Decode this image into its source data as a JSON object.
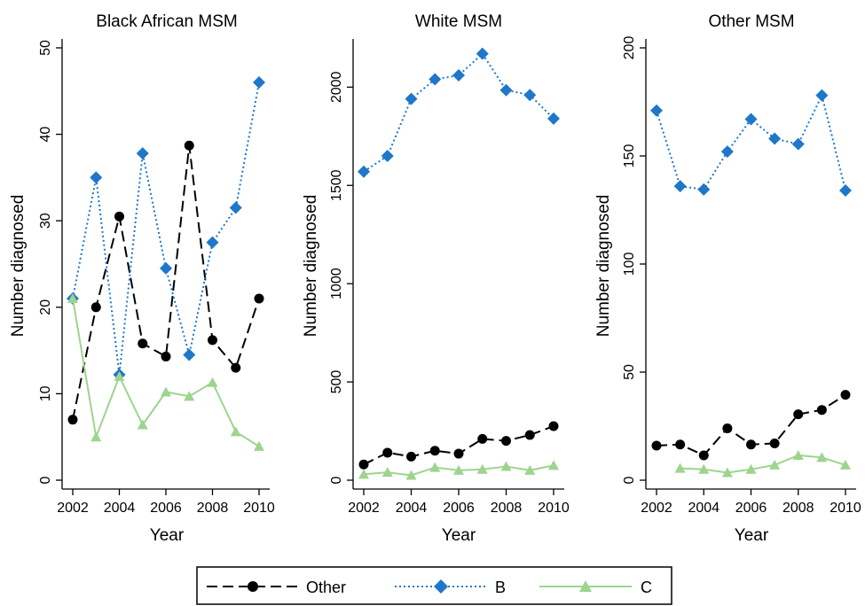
{
  "chart_data": [
    {
      "type": "line",
      "title": "Black African MSM",
      "xlabel": "Year",
      "ylabel": "Number diagnosed",
      "xlim": [
        2002,
        2010
      ],
      "ylim": [
        0,
        50
      ],
      "xticks": [
        2002,
        2004,
        2006,
        2008,
        2010
      ],
      "yticks": [
        0,
        10,
        20,
        30,
        40,
        50
      ],
      "x": [
        2002,
        2003,
        2004,
        2005,
        2006,
        2007,
        2008,
        2009,
        2010
      ],
      "series": [
        {
          "name": "Other",
          "values": [
            7,
            20,
            30.5,
            15.8,
            14.3,
            38.7,
            16.2,
            13,
            21
          ]
        },
        {
          "name": "B",
          "values": [
            21,
            35,
            12.2,
            37.8,
            24.5,
            14.5,
            27.5,
            31.5,
            46
          ]
        },
        {
          "name": "C",
          "values": [
            21,
            5,
            12,
            6.4,
            10.2,
            9.7,
            11.3,
            5.6,
            3.9
          ]
        }
      ]
    },
    {
      "type": "line",
      "title": "White MSM",
      "xlabel": "Year",
      "ylabel": "Number diagnosed",
      "xlim": [
        2002,
        2010
      ],
      "ylim": [
        0,
        2200
      ],
      "xticks": [
        2002,
        2004,
        2006,
        2008,
        2010
      ],
      "yticks": [
        0,
        500,
        1000,
        1500,
        2000
      ],
      "x": [
        2002,
        2003,
        2004,
        2005,
        2006,
        2007,
        2008,
        2009,
        2010
      ],
      "series": [
        {
          "name": "Other",
          "values": [
            80,
            140,
            120,
            150,
            135,
            210,
            200,
            230,
            275
          ]
        },
        {
          "name": "B",
          "values": [
            1570,
            1650,
            1940,
            2040,
            2060,
            2170,
            1985,
            1960,
            1840
          ]
        },
        {
          "name": "C",
          "values": [
            30,
            40,
            25,
            65,
            50,
            55,
            70,
            50,
            75
          ]
        }
      ]
    },
    {
      "type": "line",
      "title": "Other MSM",
      "xlabel": "Year",
      "ylabel": "Number diagnosed",
      "xlim": [
        2002,
        2010
      ],
      "ylim": [
        0,
        200
      ],
      "xticks": [
        2002,
        2004,
        2006,
        2008,
        2010
      ],
      "yticks": [
        0,
        50,
        100,
        150,
        200
      ],
      "x": [
        2002,
        2003,
        2004,
        2005,
        2006,
        2007,
        2008,
        2009,
        2010
      ],
      "series": [
        {
          "name": "Other",
          "values": [
            16,
            16.5,
            11.5,
            24,
            16.5,
            17,
            30.5,
            32.5,
            39.5
          ]
        },
        {
          "name": "B",
          "values": [
            171,
            136,
            134.5,
            152,
            167,
            158,
            155.5,
            178,
            134
          ]
        },
        {
          "name": "C",
          "values": [
            null,
            5.5,
            5,
            3.5,
            5,
            7,
            11.5,
            10.5,
            7
          ]
        }
      ]
    }
  ],
  "legend": {
    "position": "bottom",
    "items": [
      {
        "label": "Other",
        "color": "#000000",
        "marker": "circle",
        "dash": "long-dash"
      },
      {
        "label": "B",
        "color": "#1f77c9",
        "marker": "diamond",
        "dash": "dotted"
      },
      {
        "label": "C",
        "color": "#9ed48e",
        "marker": "triangle",
        "dash": "solid"
      }
    ]
  },
  "colors": {
    "Other": "#000000",
    "B": "#1f77c9",
    "C": "#9ed48e"
  }
}
